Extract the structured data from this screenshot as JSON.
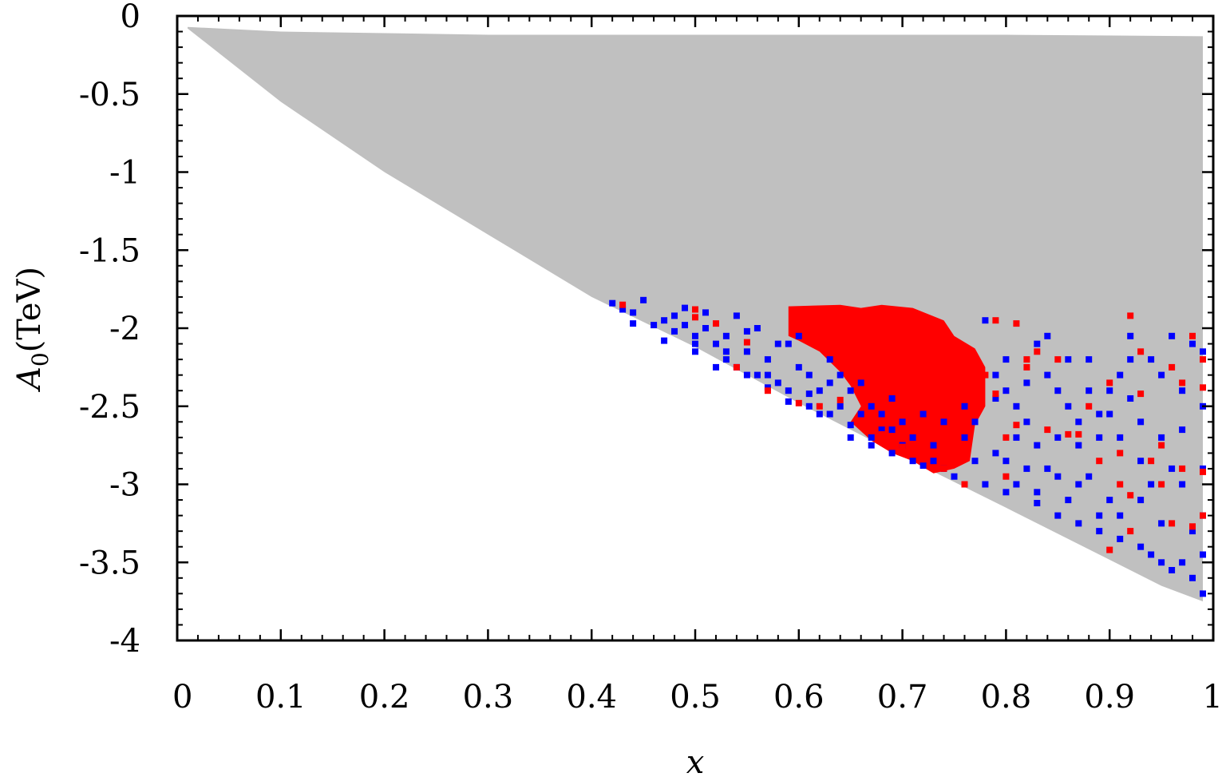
{
  "chart_data": {
    "type": "scatter",
    "title": "",
    "xlabel": "x",
    "ylabel_var": "A",
    "ylabel_sub": "0",
    "ylabel_unit": "(TeV)",
    "xlim": [
      0,
      1
    ],
    "ylim": [
      -4,
      0
    ],
    "x_ticks": [
      0,
      0.1,
      0.2,
      0.3,
      0.4,
      0.5,
      0.6,
      0.7,
      0.8,
      0.9,
      1
    ],
    "x_tick_labels": [
      "0",
      "0.1",
      "0.2",
      "0.3",
      "0.4",
      "0.5",
      "0.6",
      "0.7",
      "0.8",
      "0.9",
      "1"
    ],
    "y_ticks": [
      0,
      -0.5,
      -1,
      -1.5,
      -2,
      -2.5,
      -3,
      -3.5,
      -4
    ],
    "y_tick_labels": [
      "0",
      "-0.5",
      "-1",
      "-1.5",
      "-2",
      "-2.5",
      "-3",
      "-3.5",
      "-4"
    ],
    "grid": false,
    "legend": "none",
    "colors": {
      "allowed_region": "#c0c0c0",
      "blue_points": "#0000ff",
      "red_points": "#ff0000"
    },
    "regions": [
      {
        "color_key": "allowed_region",
        "boundary": [
          [
            0.01,
            -0.07
          ],
          [
            0.1,
            -0.1
          ],
          [
            0.3,
            -0.12
          ],
          [
            0.6,
            -0.12
          ],
          [
            0.8,
            -0.12
          ],
          [
            0.99,
            -0.13
          ],
          [
            0.99,
            -3.75
          ],
          [
            0.95,
            -3.65
          ],
          [
            0.8,
            -3.15
          ],
          [
            0.7,
            -2.82
          ],
          [
            0.6,
            -2.48
          ],
          [
            0.5,
            -2.12
          ],
          [
            0.4,
            -1.8
          ],
          [
            0.3,
            -1.4
          ],
          [
            0.2,
            -1.0
          ],
          [
            0.1,
            -0.55
          ],
          [
            0.01,
            -0.08
          ]
        ]
      }
    ],
    "series": [
      {
        "color_key": "blue_points",
        "points": [
          [
            0.42,
            -1.84
          ],
          [
            0.45,
            -1.82
          ],
          [
            0.44,
            -1.9
          ],
          [
            0.47,
            -1.95
          ],
          [
            0.48,
            -2.02
          ],
          [
            0.49,
            -1.87
          ],
          [
            0.5,
            -2.05
          ],
          [
            0.51,
            -1.9
          ],
          [
            0.52,
            -2.1
          ],
          [
            0.53,
            -2.2
          ],
          [
            0.54,
            -1.92
          ],
          [
            0.55,
            -2.02
          ],
          [
            0.56,
            -2.3
          ],
          [
            0.57,
            -2.38
          ],
          [
            0.58,
            -2.1
          ],
          [
            0.59,
            -2.47
          ],
          [
            0.6,
            -2.25
          ],
          [
            0.61,
            -2.42
          ],
          [
            0.62,
            -2.55
          ],
          [
            0.63,
            -2.2
          ],
          [
            0.64,
            -2.5
          ],
          [
            0.65,
            -2.62
          ],
          [
            0.66,
            -2.35
          ],
          [
            0.67,
            -2.75
          ],
          [
            0.68,
            -2.55
          ],
          [
            0.69,
            -2.8
          ],
          [
            0.7,
            -2.6
          ],
          [
            0.72,
            -2.88
          ],
          [
            0.74,
            -2.9
          ],
          [
            0.76,
            -2.7
          ],
          [
            0.78,
            -1.95
          ],
          [
            0.79,
            -2.45
          ],
          [
            0.8,
            -2.2
          ],
          [
            0.81,
            -3.0
          ],
          [
            0.82,
            -2.6
          ],
          [
            0.83,
            -2.1
          ],
          [
            0.84,
            -2.9
          ],
          [
            0.85,
            -2.4
          ],
          [
            0.86,
            -3.1
          ],
          [
            0.87,
            -2.75
          ],
          [
            0.88,
            -2.2
          ],
          [
            0.89,
            -3.2
          ],
          [
            0.9,
            -2.55
          ],
          [
            0.91,
            -3.35
          ],
          [
            0.92,
            -2.05
          ],
          [
            0.93,
            -2.85
          ],
          [
            0.94,
            -3.45
          ],
          [
            0.95,
            -2.3
          ],
          [
            0.96,
            -3.55
          ],
          [
            0.97,
            -2.65
          ],
          [
            0.98,
            -3.6
          ],
          [
            0.99,
            -2.15
          ],
          [
            0.99,
            -3.7
          ],
          [
            0.8,
            -2.85
          ],
          [
            0.83,
            -3.05
          ],
          [
            0.86,
            -2.5
          ],
          [
            0.88,
            -2.95
          ],
          [
            0.9,
            -3.1
          ],
          [
            0.92,
            -2.45
          ],
          [
            0.94,
            -3.0
          ],
          [
            0.96,
            -2.9
          ],
          [
            0.98,
            -3.3
          ],
          [
            0.97,
            -2.4
          ],
          [
            0.95,
            -3.25
          ],
          [
            0.93,
            -2.6
          ],
          [
            0.91,
            -2.3
          ],
          [
            0.89,
            -2.7
          ],
          [
            0.87,
            -3.0
          ],
          [
            0.85,
            -2.7
          ],
          [
            0.84,
            -2.3
          ],
          [
            0.82,
            -2.9
          ],
          [
            0.81,
            -2.5
          ],
          [
            0.79,
            -2.8
          ],
          [
            0.77,
            -2.6
          ],
          [
            0.75,
            -2.95
          ],
          [
            0.73,
            -2.75
          ],
          [
            0.71,
            -2.7
          ],
          [
            0.69,
            -2.45
          ],
          [
            0.67,
            -2.5
          ],
          [
            0.65,
            -2.4
          ],
          [
            0.63,
            -2.35
          ],
          [
            0.61,
            -2.3
          ],
          [
            0.59,
            -2.1
          ],
          [
            0.57,
            -2.2
          ],
          [
            0.55,
            -2.15
          ],
          [
            0.53,
            -2.05
          ],
          [
            0.51,
            -2.0
          ],
          [
            0.49,
            -1.98
          ],
          [
            0.5,
            -2.15
          ],
          [
            0.52,
            -2.25
          ],
          [
            0.54,
            -2.25
          ],
          [
            0.56,
            -2.0
          ],
          [
            0.58,
            -2.35
          ],
          [
            0.6,
            -2.05
          ],
          [
            0.62,
            -2.4
          ],
          [
            0.64,
            -2.3
          ],
          [
            0.66,
            -2.55
          ],
          [
            0.68,
            -2.65
          ],
          [
            0.7,
            -2.75
          ],
          [
            0.78,
            -3.0
          ],
          [
            0.8,
            -3.05
          ],
          [
            0.83,
            -3.12
          ],
          [
            0.85,
            -3.2
          ],
          [
            0.87,
            -3.25
          ],
          [
            0.89,
            -3.3
          ],
          [
            0.91,
            -3.2
          ],
          [
            0.93,
            -3.4
          ],
          [
            0.95,
            -3.5
          ],
          [
            0.97,
            -3.5
          ],
          [
            0.99,
            -3.45
          ],
          [
            0.98,
            -2.1
          ],
          [
            0.96,
            -2.05
          ],
          [
            0.94,
            -2.2
          ],
          [
            0.92,
            -2.2
          ],
          [
            0.9,
            -2.4
          ],
          [
            0.88,
            -2.4
          ],
          [
            0.86,
            -2.2
          ],
          [
            0.84,
            -2.05
          ],
          [
            0.82,
            -2.35
          ],
          [
            0.8,
            -2.4
          ],
          [
            0.99,
            -2.5
          ],
          [
            0.99,
            -2.9
          ],
          [
            0.99,
            -3.2
          ],
          [
            0.97,
            -3.0
          ],
          [
            0.95,
            -2.7
          ],
          [
            0.93,
            -3.1
          ],
          [
            0.91,
            -2.7
          ],
          [
            0.89,
            -2.55
          ],
          [
            0.87,
            -2.6
          ],
          [
            0.85,
            -2.95
          ],
          [
            0.83,
            -2.75
          ],
          [
            0.81,
            -2.7
          ],
          [
            0.79,
            -2.3
          ],
          [
            0.77,
            -2.85
          ],
          [
            0.76,
            -2.5
          ],
          [
            0.74,
            -2.6
          ],
          [
            0.72,
            -2.55
          ],
          [
            0.48,
            -1.92
          ],
          [
            0.46,
            -1.98
          ],
          [
            0.44,
            -1.97
          ],
          [
            0.43,
            -1.88
          ],
          [
            0.47,
            -2.08
          ],
          [
            0.5,
            -2.1
          ],
          [
            0.53,
            -2.15
          ],
          [
            0.55,
            -2.3
          ],
          [
            0.57,
            -2.3
          ],
          [
            0.59,
            -2.4
          ],
          [
            0.61,
            -2.5
          ],
          [
            0.63,
            -2.55
          ],
          [
            0.65,
            -2.7
          ],
          [
            0.67,
            -2.7
          ],
          [
            0.69,
            -2.65
          ],
          [
            0.71,
            -2.85
          ],
          [
            0.73,
            -2.85
          ]
        ]
      },
      {
        "color_key": "red_points",
        "points": [
          [
            0.43,
            -1.85
          ],
          [
            0.5,
            -1.88
          ],
          [
            0.5,
            -1.93
          ],
          [
            0.52,
            -1.97
          ],
          [
            0.55,
            -2.09
          ],
          [
            0.54,
            -2.25
          ],
          [
            0.57,
            -2.4
          ],
          [
            0.6,
            -2.48
          ],
          [
            0.62,
            -2.5
          ],
          [
            0.64,
            -2.46
          ],
          [
            0.66,
            -2.6
          ],
          [
            0.68,
            -2.68
          ],
          [
            0.7,
            -2.76
          ],
          [
            0.72,
            -2.84
          ],
          [
            0.74,
            -2.9
          ],
          [
            0.76,
            -3.0
          ],
          [
            0.79,
            -1.95
          ],
          [
            0.8,
            -2.7
          ],
          [
            0.81,
            -1.97
          ],
          [
            0.82,
            -2.25
          ],
          [
            0.83,
            -2.15
          ],
          [
            0.84,
            -2.65
          ],
          [
            0.85,
            -2.2
          ],
          [
            0.86,
            -2.68
          ],
          [
            0.88,
            -2.5
          ],
          [
            0.89,
            -2.85
          ],
          [
            0.9,
            -2.35
          ],
          [
            0.91,
            -2.8
          ],
          [
            0.91,
            -3.0
          ],
          [
            0.92,
            -1.92
          ],
          [
            0.92,
            -3.07
          ],
          [
            0.93,
            -2.15
          ],
          [
            0.94,
            -2.85
          ],
          [
            0.95,
            -3.0
          ],
          [
            0.95,
            -2.75
          ],
          [
            0.96,
            -2.25
          ],
          [
            0.96,
            -3.25
          ],
          [
            0.97,
            -2.35
          ],
          [
            0.97,
            -2.9
          ],
          [
            0.98,
            -2.05
          ],
          [
            0.98,
            -3.27
          ],
          [
            0.99,
            -2.2
          ],
          [
            0.99,
            -2.38
          ],
          [
            0.99,
            -3.2
          ],
          [
            0.99,
            -2.92
          ],
          [
            0.92,
            -3.3
          ],
          [
            0.93,
            -2.42
          ],
          [
            0.9,
            -3.42
          ],
          [
            0.87,
            -2.68
          ],
          [
            0.81,
            -2.62
          ],
          [
            0.79,
            -2.42
          ],
          [
            0.8,
            -2.95
          ],
          [
            0.78,
            -2.3
          ],
          [
            0.82,
            -2.2
          ]
        ]
      }
    ],
    "dense_red_blob": {
      "color_key": "red_points",
      "boundary": [
        [
          0.59,
          -1.86
        ],
        [
          0.64,
          -1.85
        ],
        [
          0.66,
          -1.87
        ],
        [
          0.68,
          -1.85
        ],
        [
          0.71,
          -1.87
        ],
        [
          0.74,
          -1.95
        ],
        [
          0.75,
          -2.05
        ],
        [
          0.77,
          -2.13
        ],
        [
          0.78,
          -2.25
        ],
        [
          0.78,
          -2.5
        ],
        [
          0.77,
          -2.62
        ],
        [
          0.765,
          -2.85
        ],
        [
          0.75,
          -2.9
        ],
        [
          0.73,
          -2.93
        ],
        [
          0.71,
          -2.85
        ],
        [
          0.69,
          -2.8
        ],
        [
          0.67,
          -2.72
        ],
        [
          0.65,
          -2.6
        ],
        [
          0.66,
          -2.5
        ],
        [
          0.65,
          -2.37
        ],
        [
          0.64,
          -2.28
        ],
        [
          0.62,
          -2.15
        ],
        [
          0.6,
          -2.08
        ],
        [
          0.59,
          -2.05
        ]
      ]
    }
  }
}
